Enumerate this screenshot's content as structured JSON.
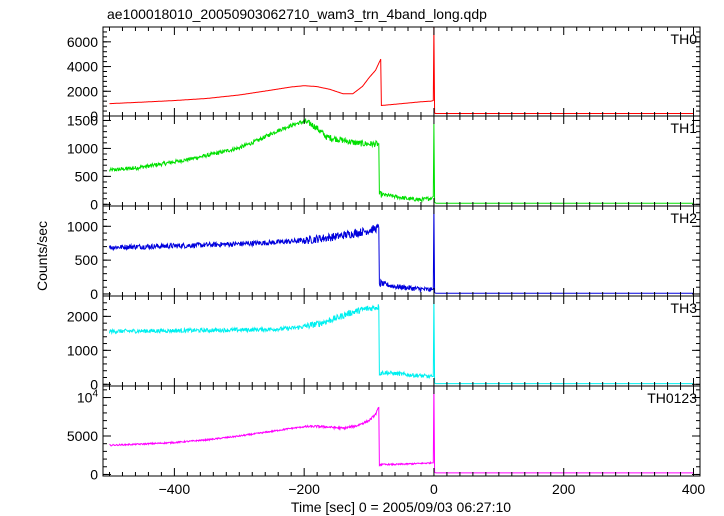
{
  "figure": {
    "title": "ae100018010_20050903062710_wam3_trn_4band_long.qdp",
    "xlabel": "Time [sec] 0 = 2005/09/03 06:27:10",
    "ylabel": "Counts/sec"
  },
  "chart_data": [
    {
      "type": "line",
      "panel": "TH0",
      "color": "#ff0000",
      "xlim": [
        -510,
        410
      ],
      "ylim": [
        0,
        7200
      ],
      "yticks": [
        {
          "v": 0,
          "label": "0"
        },
        {
          "v": 2000,
          "label": "2000"
        },
        {
          "v": 4000,
          "label": "4000"
        },
        {
          "v": 6000,
          "label": "6000"
        }
      ],
      "series": [
        {
          "x": [
            -500,
            -450,
            -400,
            -350,
            -300,
            -250,
            -220,
            -200,
            -180,
            -160,
            -140,
            -125,
            -110,
            -100,
            -90,
            -82,
            -81,
            -60,
            -40,
            -20,
            -5,
            -1,
            0,
            1,
            2,
            400
          ],
          "y": [
            1000,
            1120,
            1250,
            1420,
            1700,
            2100,
            2350,
            2450,
            2380,
            2150,
            1800,
            1800,
            2400,
            3100,
            3700,
            4600,
            850,
            950,
            1050,
            1150,
            1200,
            1250,
            7200,
            300,
            200,
            200
          ]
        }
      ]
    },
    {
      "type": "line",
      "panel": "TH1",
      "color": "#00e000",
      "xlim": [
        -510,
        410
      ],
      "ylim": [
        -30,
        1580
      ],
      "yticks": [
        {
          "v": 0,
          "label": "0"
        },
        {
          "v": 500,
          "label": "500"
        },
        {
          "v": 1000,
          "label": "1000"
        },
        {
          "v": 1500,
          "label": "1500"
        }
      ],
      "series": [
        {
          "x": [
            -500,
            -460,
            -420,
            -380,
            -340,
            -300,
            -270,
            -250,
            -230,
            -210,
            -200,
            -190,
            -180,
            -165,
            -150,
            -130,
            -115,
            -100,
            -85,
            -84,
            -60,
            -40,
            -20,
            -5,
            -1,
            0,
            1,
            3,
            400
          ],
          "y": [
            610,
            650,
            720,
            800,
            900,
            1010,
            1150,
            1270,
            1370,
            1450,
            1480,
            1440,
            1360,
            1200,
            1170,
            1120,
            1090,
            1080,
            1080,
            180,
            140,
            100,
            80,
            110,
            140,
            1440,
            40,
            20,
            20
          ]
        }
      ],
      "noise": 35
    },
    {
      "type": "line",
      "panel": "TH2",
      "color": "#0000dd",
      "xlim": [
        -510,
        410
      ],
      "ylim": [
        -30,
        1300
      ],
      "yticks": [
        {
          "v": 0,
          "label": "0"
        },
        {
          "v": 500,
          "label": "500"
        },
        {
          "v": 1000,
          "label": "1000"
        }
      ],
      "series": [
        {
          "x": [
            -500,
            -450,
            -400,
            -350,
            -300,
            -250,
            -200,
            -150,
            -120,
            -100,
            -85,
            -84,
            -60,
            -30,
            -5,
            -1,
            0,
            1,
            3,
            400
          ],
          "y": [
            690,
            700,
            710,
            725,
            740,
            760,
            790,
            850,
            900,
            940,
            980,
            160,
            110,
            80,
            60,
            70,
            1300,
            20,
            10,
            10
          ]
        }
      ],
      "noise": 38
    },
    {
      "type": "line",
      "panel": "TH3",
      "color": "#00f0f0",
      "xlim": [
        -510,
        410
      ],
      "ylim": [
        -50,
        2600
      ],
      "yticks": [
        {
          "v": 0,
          "label": "0"
        },
        {
          "v": 1000,
          "label": "1000"
        },
        {
          "v": 2000,
          "label": "2000"
        }
      ],
      "series": [
        {
          "x": [
            -500,
            -450,
            -400,
            -350,
            -300,
            -250,
            -220,
            -200,
            -175,
            -150,
            -130,
            -110,
            -95,
            -85,
            -84,
            -60,
            -40,
            -20,
            -5,
            -1,
            0,
            1,
            3,
            400
          ],
          "y": [
            1560,
            1570,
            1580,
            1590,
            1600,
            1620,
            1650,
            1700,
            1800,
            1950,
            2100,
            2200,
            2250,
            2280,
            350,
            320,
            280,
            250,
            230,
            230,
            2600,
            40,
            20,
            20
          ]
        }
      ],
      "noise": 60
    },
    {
      "type": "line",
      "panel": "TH0123",
      "color": "#ff00ff",
      "xlim": [
        -510,
        410
      ],
      "ylim": [
        -200,
        11500
      ],
      "yticks": [
        {
          "v": 0,
          "label": "0"
        },
        {
          "v": 5000,
          "label": "5000"
        },
        {
          "v": 10000,
          "label": "10^4"
        }
      ],
      "series": [
        {
          "x": [
            -500,
            -450,
            -400,
            -350,
            -300,
            -250,
            -220,
            -200,
            -180,
            -160,
            -140,
            -120,
            -100,
            -90,
            -85,
            -84,
            -60,
            -30,
            -5,
            -1,
            0,
            1,
            3,
            400
          ],
          "y": [
            3800,
            3950,
            4150,
            4500,
            5000,
            5600,
            6000,
            6200,
            6250,
            6150,
            6000,
            6300,
            7000,
            7800,
            8700,
            1300,
            1300,
            1400,
            1500,
            1500,
            11500,
            300,
            200,
            200
          ]
        }
      ],
      "noise": 90
    }
  ],
  "xaxis": {
    "ticks": [
      -400,
      -200,
      0,
      200,
      400
    ],
    "tick_labels": [
      "−400",
      "−200",
      "0",
      "200",
      "400"
    ]
  }
}
